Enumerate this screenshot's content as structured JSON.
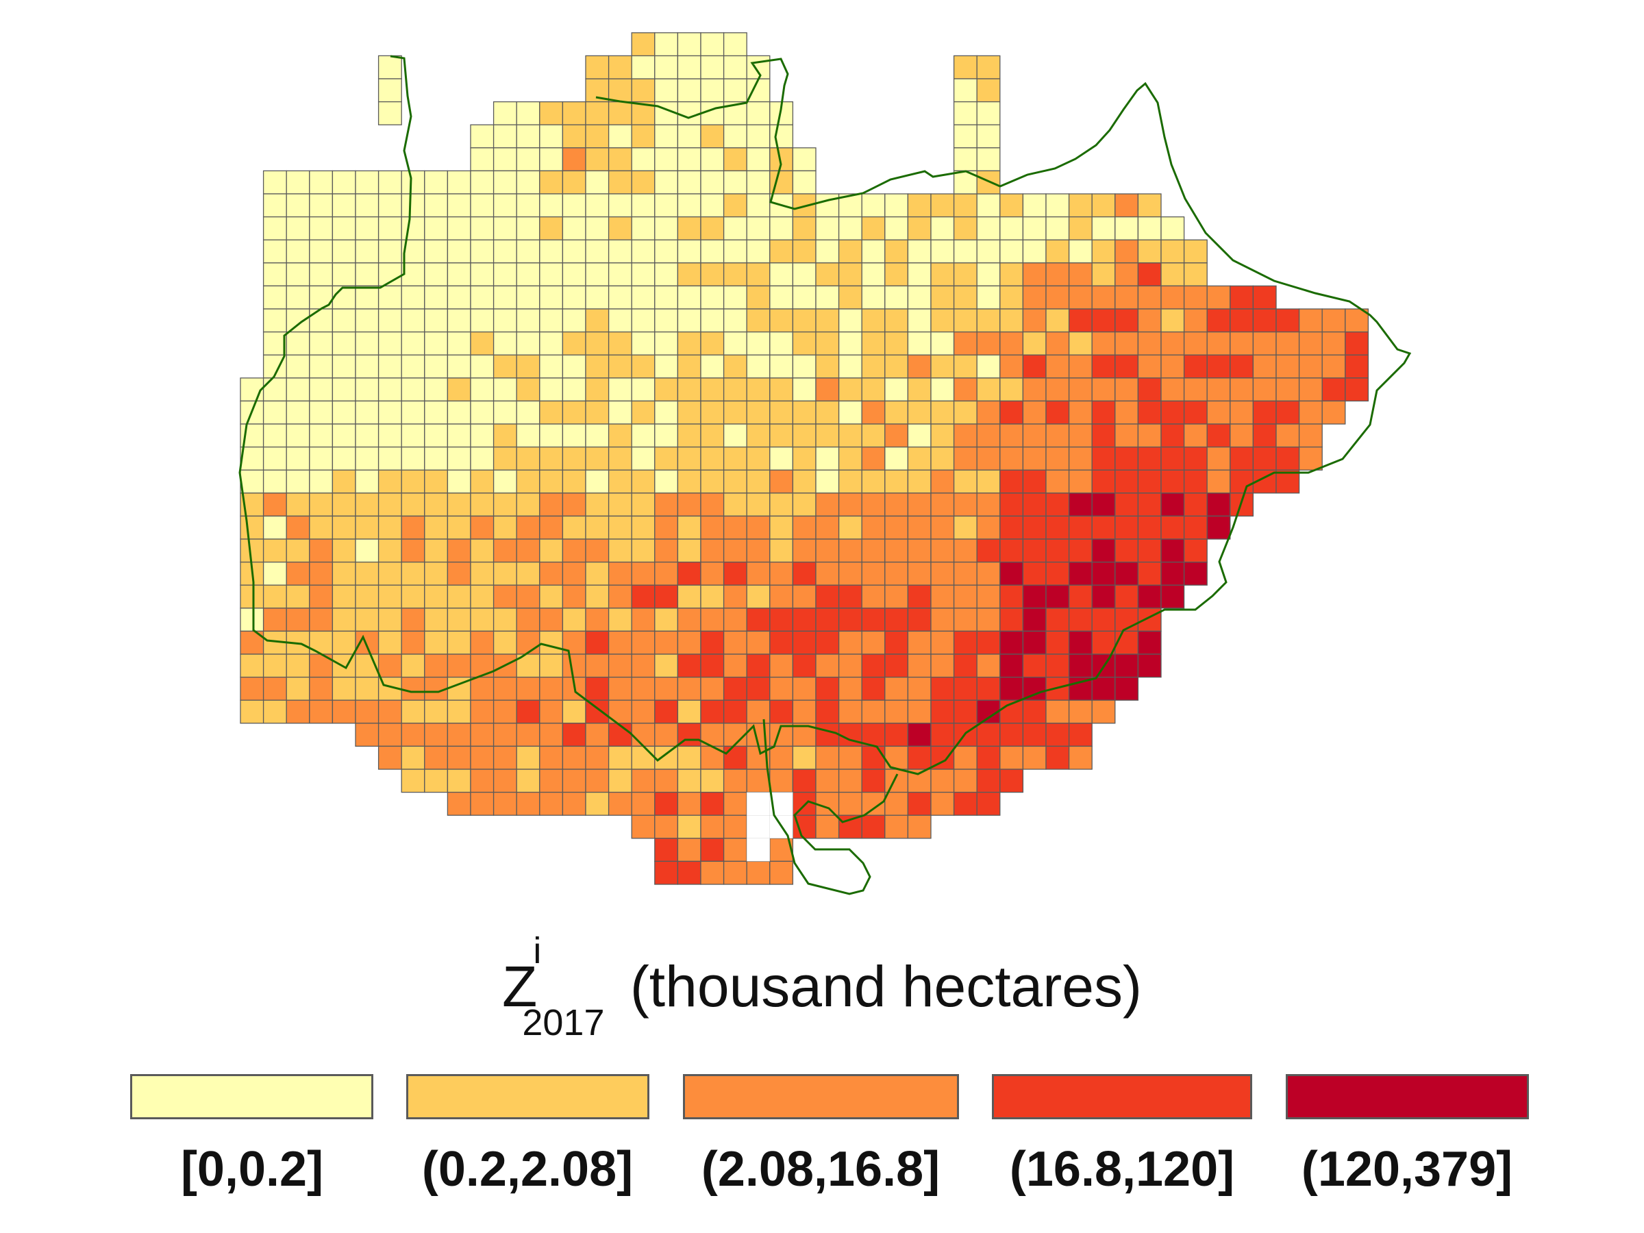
{
  "legend": {
    "title_main": "Z",
    "title_sup": "i",
    "title_sub": "2017",
    "title_rest": " (thousand hectares)",
    "classes": [
      {
        "label": "[0,0.2]",
        "color": "#FFFFB2"
      },
      {
        "label": "(0.2,2.08]",
        "color": "#FECC5C"
      },
      {
        "label": "(2.08,16.8]",
        "color": "#FD8D3C"
      },
      {
        "label": "(16.8,120]",
        "color": "#F03B20"
      },
      {
        "label": "(120,379]",
        "color": "#BD0026"
      }
    ]
  },
  "map": {
    "grid_line_color": "#5A5A5A",
    "boundary_color": "#1A6B00"
  }
}
